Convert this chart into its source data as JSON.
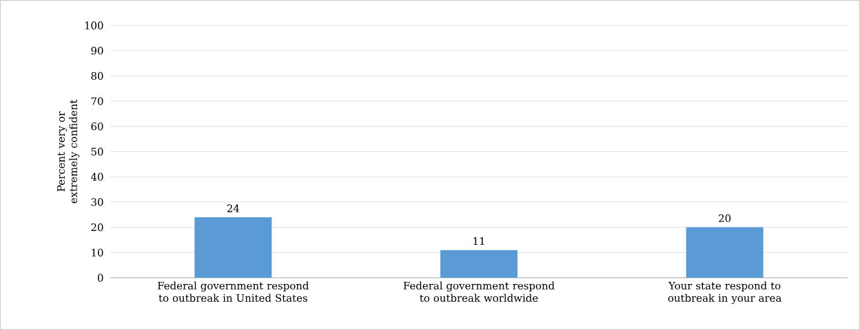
{
  "chart_data": {
    "type": "bar",
    "ylabel": "Percent very or extremely confident",
    "categories": [
      "Federal government respond to outbreak in United States",
      "Federal government respond to outbreak worldwide",
      "Your state respond to outbreak in your area"
    ],
    "values": [
      24,
      11,
      20
    ],
    "color": "#5b9bd5",
    "ylim": [
      0,
      100
    ],
    "yticks": [
      0,
      10,
      20,
      30,
      40,
      50,
      60,
      70,
      80,
      90,
      100
    ],
    "grid": "y",
    "data_labels": true
  }
}
